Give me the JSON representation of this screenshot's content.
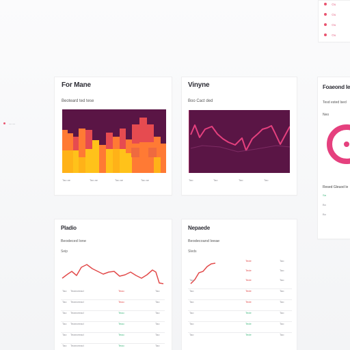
{
  "top_right": {
    "items": [
      "Ou",
      "Ou",
      "Ou",
      "Ou"
    ]
  },
  "left_stub": {
    "label": "— —"
  },
  "cards": {
    "heat": {
      "title": "For Mane",
      "subtitle": "Beoteard ted tese",
      "footer": [
        "Tao ae",
        "Tao ae",
        "Tao ae",
        "Tao ae"
      ]
    },
    "volume": {
      "title": "Vinyne",
      "subtitle": "Boo Cact ded",
      "footer": [
        "Tao",
        "Tao",
        "Tao",
        "Tao"
      ]
    },
    "side": {
      "title": "Foaeond Ie",
      "subtitle": "Tesd ested lsed",
      "section": "Neo",
      "legend_title": "Resed Gleuod le",
      "legend_items": [
        "Sa",
        "Bo",
        "Bo"
      ]
    },
    "bottom_left": {
      "title": "Pladio",
      "subtitle": "Beodeced Ione",
      "caption": "Seip",
      "rows": [
        [
          "Tao",
          "Teaeceead",
          "Teao",
          "Tao"
        ],
        [
          "Tao",
          "Teaeceead",
          "Teao",
          "Tao"
        ],
        [
          "Tao",
          "Teaeceead",
          "Teao",
          "Tao"
        ],
        [
          "Tao",
          "Teaeceead",
          "Teao",
          "Tao"
        ],
        [
          "Tao",
          "Teaeceead",
          "Teao",
          "Tao"
        ],
        [
          "Tao",
          "Teaeceead",
          "Teao",
          "Tao"
        ]
      ]
    },
    "bottom_right": {
      "title": "Nepaede",
      "subtitle": "Beodecoand Ieeae",
      "caption": "Sleds",
      "rows": [
        [
          "Tao",
          "Tede",
          "Tao"
        ],
        [
          "Tao",
          "Tede",
          "Tao"
        ],
        [
          "Tao",
          "Tede",
          "Tao"
        ],
        [
          "Tao",
          "Tede",
          "Tao"
        ],
        [
          "Tao",
          "Tede",
          "Tao"
        ],
        [
          "Tao",
          "Tede",
          "Tao"
        ],
        [
          "Tao",
          "Tede",
          "Tao"
        ],
        [
          "Tao",
          "Tede",
          "Tao"
        ]
      ]
    }
  },
  "colors": {
    "plum": "#5a1545",
    "pink": "#e5407e",
    "red": "#e24a4a",
    "orange": "#ff7a34",
    "yellow": "#ffc21a",
    "green": "#3cb77b",
    "gray": "#bdbdc5"
  }
}
